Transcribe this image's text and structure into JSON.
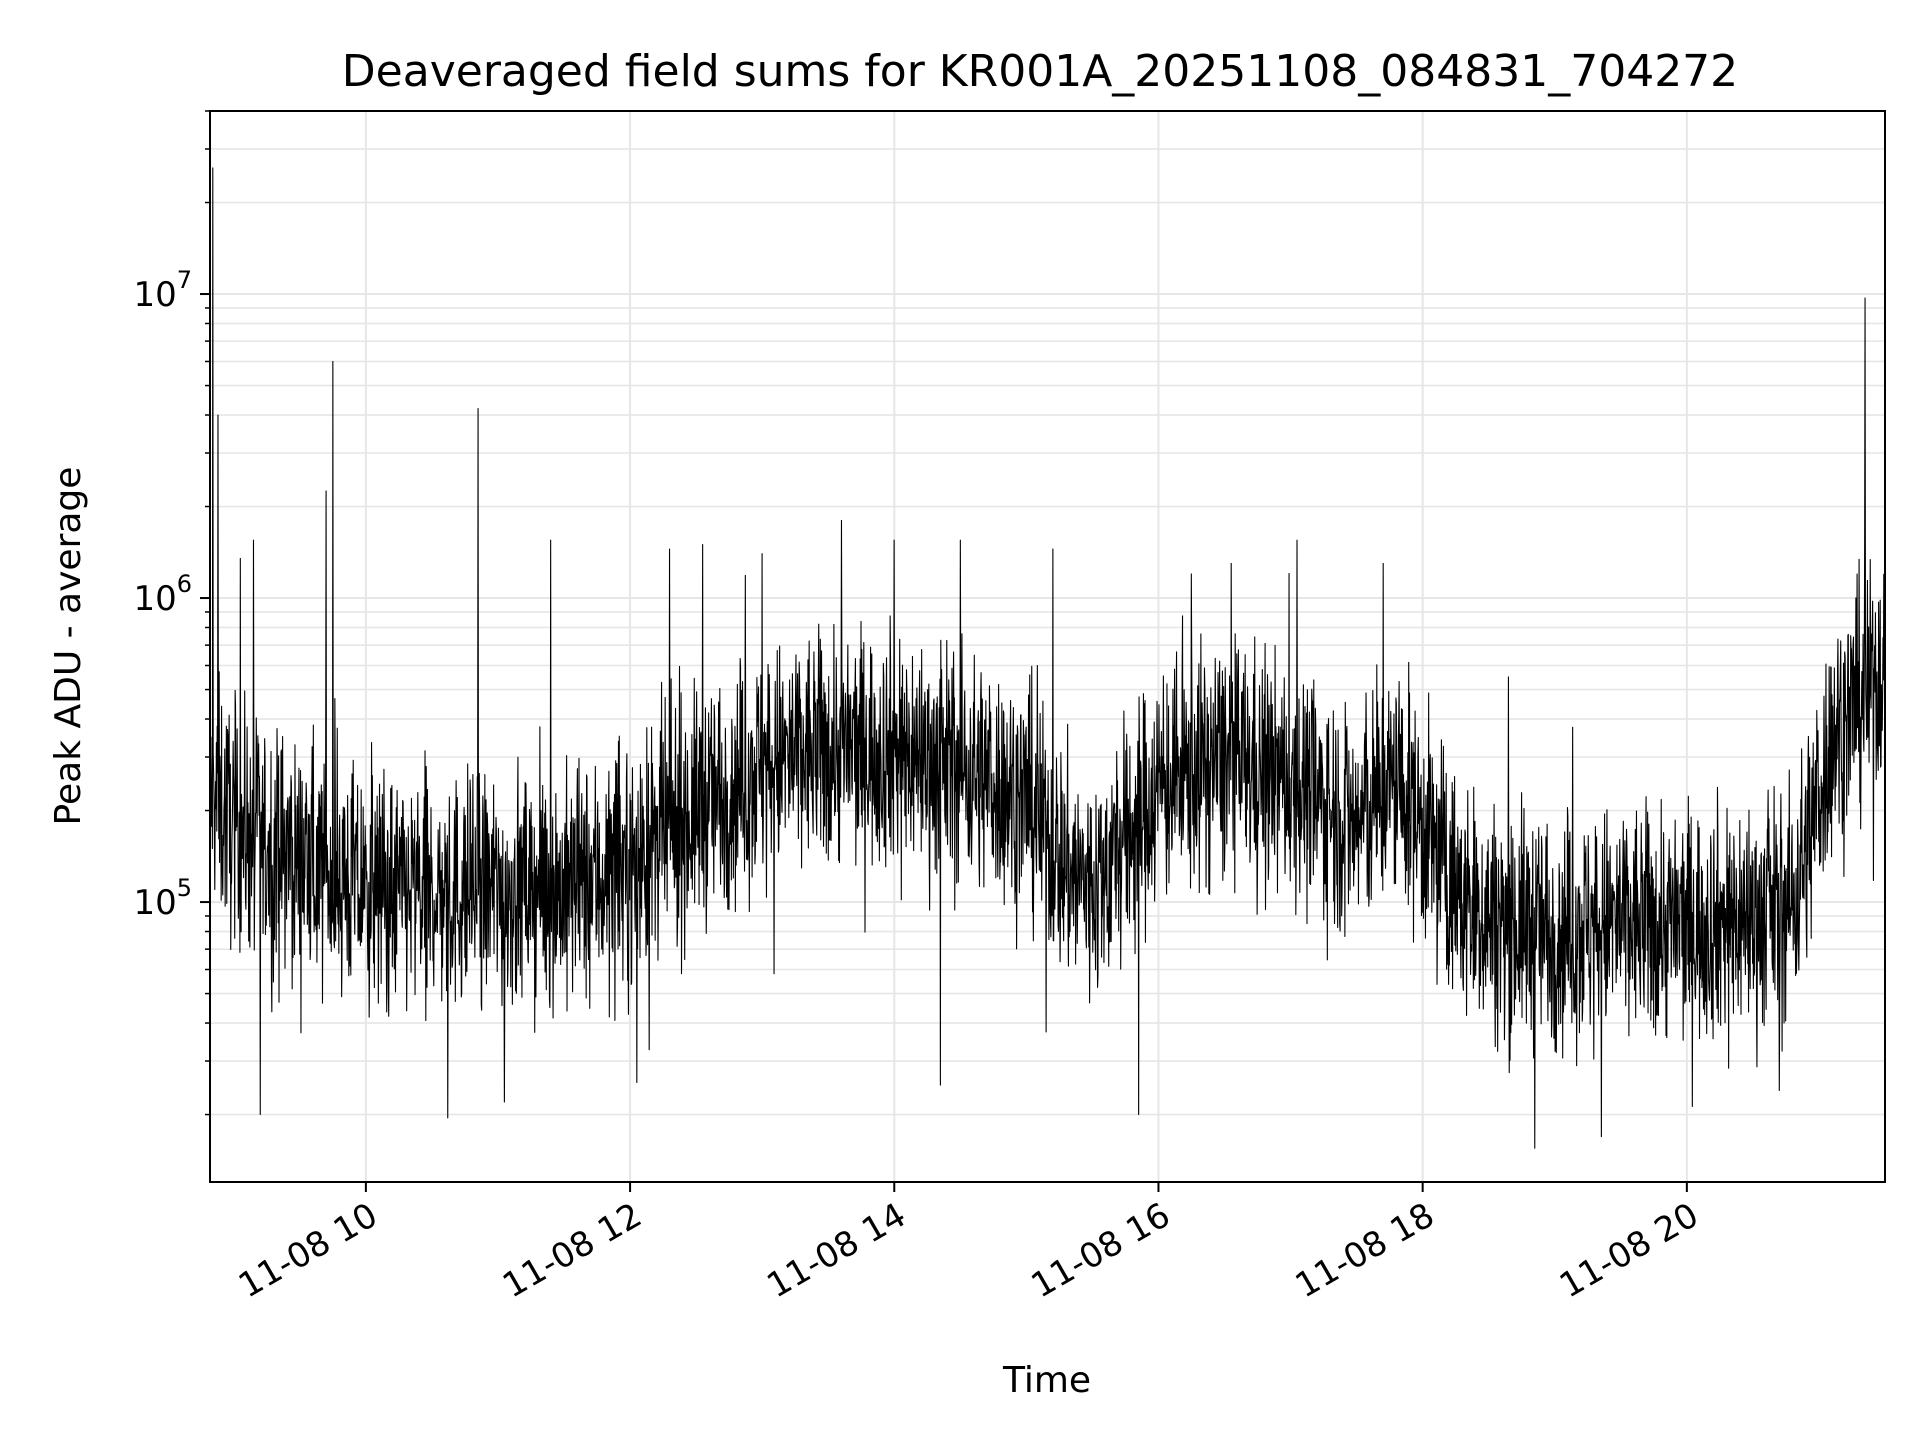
{
  "chart_data": {
    "type": "line",
    "title": "Deaveraged field sums for KR001A_20251108_084831_704272",
    "xlabel": "Time",
    "ylabel": "Peak ADU - average",
    "yscale": "log",
    "ylim": [
      12000,
      40000000
    ],
    "xlim_hours": [
      8.82,
      21.5
    ],
    "grid": true,
    "line_color": "#000000",
    "grid_color": "#e6e6e6",
    "x_ticks": [
      {
        "hour": 10,
        "label": "11-08 10"
      },
      {
        "hour": 12,
        "label": "11-08 12"
      },
      {
        "hour": 14,
        "label": "11-08 14"
      },
      {
        "hour": 16,
        "label": "11-08 16"
      },
      {
        "hour": 18,
        "label": "11-08 18"
      },
      {
        "hour": 20,
        "label": "11-08 20"
      }
    ],
    "y_ticks": [
      {
        "value": 100000,
        "base": "10",
        "exp": "5"
      },
      {
        "value": 1000000,
        "base": "10",
        "exp": "6"
      },
      {
        "value": 10000000,
        "base": "10",
        "exp": "7"
      }
    ],
    "series": [
      {
        "name": "deaveraged field sum",
        "baseline": {
          "hours": [
            8.82,
            9.0,
            9.3,
            9.6,
            10.0,
            10.5,
            11.0,
            11.5,
            12.0,
            12.5,
            13.0,
            13.5,
            14.0,
            14.5,
            15.0,
            15.3,
            15.5,
            16.0,
            16.5,
            17.0,
            17.5,
            17.8,
            18.0,
            18.3,
            18.6,
            19.0,
            19.5,
            20.0,
            20.5,
            20.8,
            20.95,
            21.1,
            21.5
          ],
          "values": [
            230000,
            180000,
            150000,
            130000,
            110000,
            105000,
            110000,
            110000,
            130000,
            200000,
            280000,
            320000,
            320000,
            280000,
            220000,
            130000,
            110000,
            240000,
            300000,
            250000,
            180000,
            250000,
            180000,
            100000,
            85000,
            80000,
            85000,
            85000,
            90000,
            100000,
            180000,
            350000,
            600000
          ]
        },
        "spikes": [
          {
            "hour": 8.84,
            "value": 26000000
          },
          {
            "hour": 8.88,
            "value": 4000000
          },
          {
            "hour": 9.05,
            "value": 1350000
          },
          {
            "hour": 9.15,
            "value": 1550000
          },
          {
            "hour": 9.7,
            "value": 2250000
          },
          {
            "hour": 9.75,
            "value": 6000000
          },
          {
            "hour": 10.85,
            "value": 4200000
          },
          {
            "hour": 11.4,
            "value": 1550000
          },
          {
            "hour": 12.3,
            "value": 1450000
          },
          {
            "hour": 12.55,
            "value": 1500000
          },
          {
            "hour": 13.0,
            "value": 1400000
          },
          {
            "hour": 13.6,
            "value": 1800000
          },
          {
            "hour": 14.0,
            "value": 1550000
          },
          {
            "hour": 14.5,
            "value": 1550000
          },
          {
            "hour": 15.2,
            "value": 1450000
          },
          {
            "hour": 16.25,
            "value": 1200000
          },
          {
            "hour": 16.55,
            "value": 1300000
          },
          {
            "hour": 17.05,
            "value": 1550000
          },
          {
            "hour": 17.7,
            "value": 1300000
          },
          {
            "hour": 18.65,
            "value": 550000
          },
          {
            "hour": 21.35,
            "value": 9700000
          }
        ],
        "dips": [
          {
            "hour": 9.2,
            "value": 20000
          },
          {
            "hour": 10.62,
            "value": 19500
          },
          {
            "hour": 11.05,
            "value": 22000
          },
          {
            "hour": 12.05,
            "value": 25500
          },
          {
            "hour": 14.35,
            "value": 25000
          },
          {
            "hour": 15.85,
            "value": 20000
          },
          {
            "hour": 18.85,
            "value": 15500
          },
          {
            "hour": 20.7,
            "value": 24000
          }
        ]
      }
    ]
  }
}
